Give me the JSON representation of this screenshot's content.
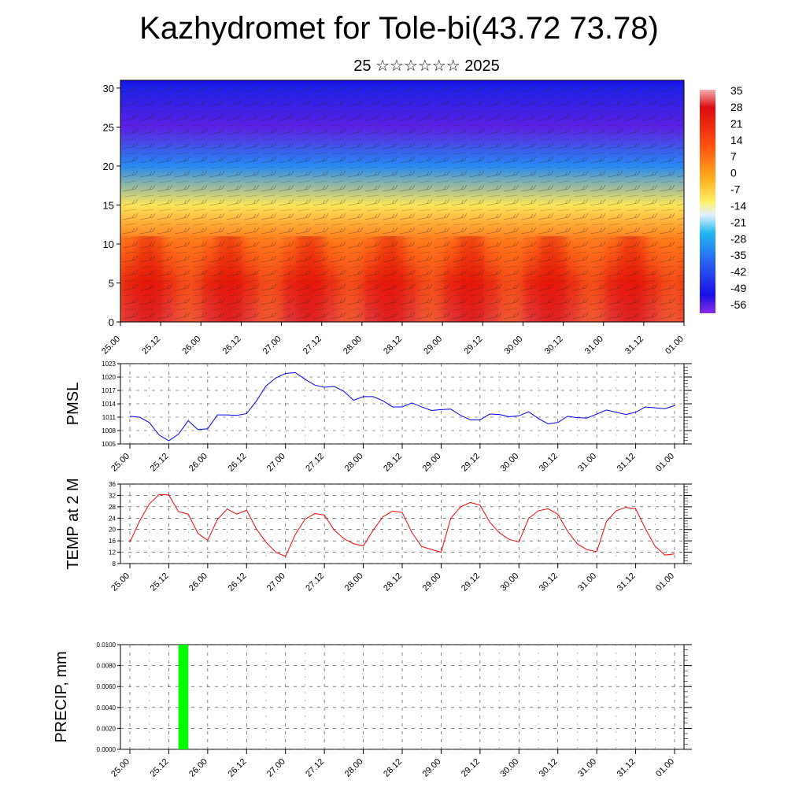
{
  "title": "Kazhydromet for Tole-bi(43.72 73.78)",
  "subtitle": "25 ☆☆☆☆☆☆ 2025",
  "time_labels": [
    "25.00",
    "25.12",
    "26.00",
    "26.12",
    "27.00",
    "27.12",
    "28.00",
    "28.12",
    "29.00",
    "29.12",
    "30.00",
    "30.12",
    "31.00",
    "31.12",
    "01.00"
  ],
  "colors": {
    "pmsl_line": "#0000ff",
    "temp_line": "#ff0000",
    "precip_bar": "#00ff00"
  },
  "chart_data": [
    {
      "type": "heatmap",
      "title": "",
      "xlabel": "",
      "ylabel": "",
      "x_categories": [
        "25.00",
        "25.12",
        "26.00",
        "26.12",
        "27.00",
        "27.12",
        "28.00",
        "28.12",
        "29.00",
        "29.12",
        "30.00",
        "30.12",
        "31.00",
        "31.12",
        "01.00"
      ],
      "ylim": [
        0,
        31
      ],
      "y_ticks": [
        0,
        5,
        10,
        15,
        20,
        25,
        30
      ],
      "colorbar_labels": [
        "35",
        "28",
        "21",
        "14",
        "7",
        "0",
        "-7",
        "-14",
        "-21",
        "-28",
        "-35",
        "-42",
        "-49",
        "-56"
      ],
      "wind_barbs_overlay": true,
      "approx_values_by_level": {
        "levels": [
          0,
          5,
          10,
          15,
          20,
          25,
          30
        ],
        "values": [
          30,
          24,
          14,
          -5,
          -35,
          -58,
          -52
        ]
      }
    },
    {
      "type": "line",
      "ylabel": "PMSL",
      "x": [
        0,
        0.125,
        0.25,
        0.375,
        0.5,
        0.625,
        0.75,
        0.875,
        1,
        1.125,
        1.25,
        1.375,
        1.5,
        1.625,
        1.75,
        1.875,
        2,
        2.125,
        2.25,
        2.375,
        2.5,
        2.625,
        2.75,
        2.875,
        3,
        3.125,
        3.25,
        3.375,
        3.5,
        3.625,
        3.75,
        3.875,
        4,
        4.125,
        4.25,
        4.375,
        4.5,
        4.625,
        4.75,
        4.875,
        5,
        5.125,
        5.25,
        5.375,
        5.5,
        5.625,
        5.75,
        5.875,
        6,
        6.125,
        6.25,
        6.375,
        6.5,
        6.625,
        6.75,
        6.875,
        7
      ],
      "values": [
        1011.2,
        1011.0,
        1009.8,
        1007.0,
        1005.7,
        1007.2,
        1010.2,
        1008.2,
        1008.4,
        1011.5,
        1011.5,
        1011.4,
        1011.8,
        1014.6,
        1018.0,
        1019.8,
        1020.8,
        1021.0,
        1019.5,
        1018.2,
        1017.7,
        1017.9,
        1016.8,
        1014.8,
        1015.6,
        1015.6,
        1014.7,
        1013.3,
        1013.3,
        1014.2,
        1013.3,
        1012.5,
        1012.7,
        1012.8,
        1011.4,
        1010.4,
        1010.4,
        1011.7,
        1011.6,
        1011.1,
        1011.3,
        1012.2,
        1010.7,
        1009.5,
        1009.8,
        1011.2,
        1010.9,
        1010.8,
        1011.7,
        1012.6,
        1012.1,
        1011.6,
        1012.1,
        1013.3,
        1013.1,
        1012.9,
        1013.6
      ],
      "ylim": [
        1005,
        1023
      ],
      "y_ticks": [
        1005,
        1008,
        1011,
        1014,
        1017,
        1020,
        1023
      ],
      "x_tick_labels": [
        "25.00",
        "25.12",
        "26.00",
        "26.12",
        "27.00",
        "27.12",
        "28.00",
        "28.12",
        "29.00",
        "29.12",
        "30.00",
        "30.12",
        "31.00",
        "31.12",
        "01.00"
      ]
    },
    {
      "type": "line",
      "ylabel": "TEMP at 2 M",
      "x": [
        0,
        0.125,
        0.25,
        0.375,
        0.5,
        0.625,
        0.75,
        0.875,
        1,
        1.125,
        1.25,
        1.375,
        1.5,
        1.625,
        1.75,
        1.875,
        2,
        2.125,
        2.25,
        2.375,
        2.5,
        2.625,
        2.75,
        2.875,
        3,
        3.125,
        3.25,
        3.375,
        3.5,
        3.625,
        3.75,
        3.875,
        4,
        4.125,
        4.25,
        4.375,
        4.5,
        4.625,
        4.75,
        4.875,
        5,
        5.125,
        5.25,
        5.375,
        5.5,
        5.625,
        5.75,
        5.875,
        6,
        6.125,
        6.25,
        6.375,
        6.5,
        6.625,
        6.75,
        6.875,
        7
      ],
      "values": [
        15.5,
        23.0,
        29.0,
        32.3,
        32.2,
        26.3,
        25.4,
        18.6,
        16.2,
        23.5,
        27.2,
        25.4,
        26.8,
        20.2,
        15.5,
        12.0,
        10.5,
        18.2,
        23.6,
        25.6,
        25.1,
        19.8,
        16.8,
        15.0,
        14.2,
        19.7,
        24.4,
        26.5,
        26.0,
        18.9,
        14.0,
        13.0,
        12.0,
        24.0,
        28.0,
        29.5,
        28.6,
        22.6,
        18.8,
        16.5,
        15.6,
        23.9,
        26.6,
        27.3,
        25.4,
        19.4,
        14.9,
        12.9,
        12.2,
        22.8,
        26.6,
        27.8,
        27.3,
        20.3,
        14.1,
        11.0,
        11.4
      ],
      "ylim": [
        8,
        36
      ],
      "y_ticks": [
        8,
        12,
        16,
        20,
        24,
        28,
        32,
        36
      ],
      "x_tick_labels": [
        "25.00",
        "25.12",
        "26.00",
        "26.12",
        "27.00",
        "27.12",
        "28.00",
        "28.12",
        "29.00",
        "29.12",
        "30.00",
        "30.12",
        "31.00",
        "31.12",
        "01.00"
      ]
    },
    {
      "type": "bar",
      "ylabel": "PRECIP, mm",
      "bars": [
        {
          "x_start": 0.625,
          "x_end": 0.75,
          "value": 0.01
        }
      ],
      "ylim": [
        0,
        0.01
      ],
      "y_ticks": [
        "0.0000",
        "0.0020",
        "0.0040",
        "0.0060",
        "0.0080",
        "0.0100"
      ],
      "x_tick_labels": [
        "25.00",
        "25.12",
        "26.00",
        "26.12",
        "27.00",
        "27.12",
        "28.00",
        "28.12",
        "29.00",
        "29.12",
        "30.00",
        "30.12",
        "31.00",
        "31.12",
        "01.00"
      ]
    }
  ]
}
